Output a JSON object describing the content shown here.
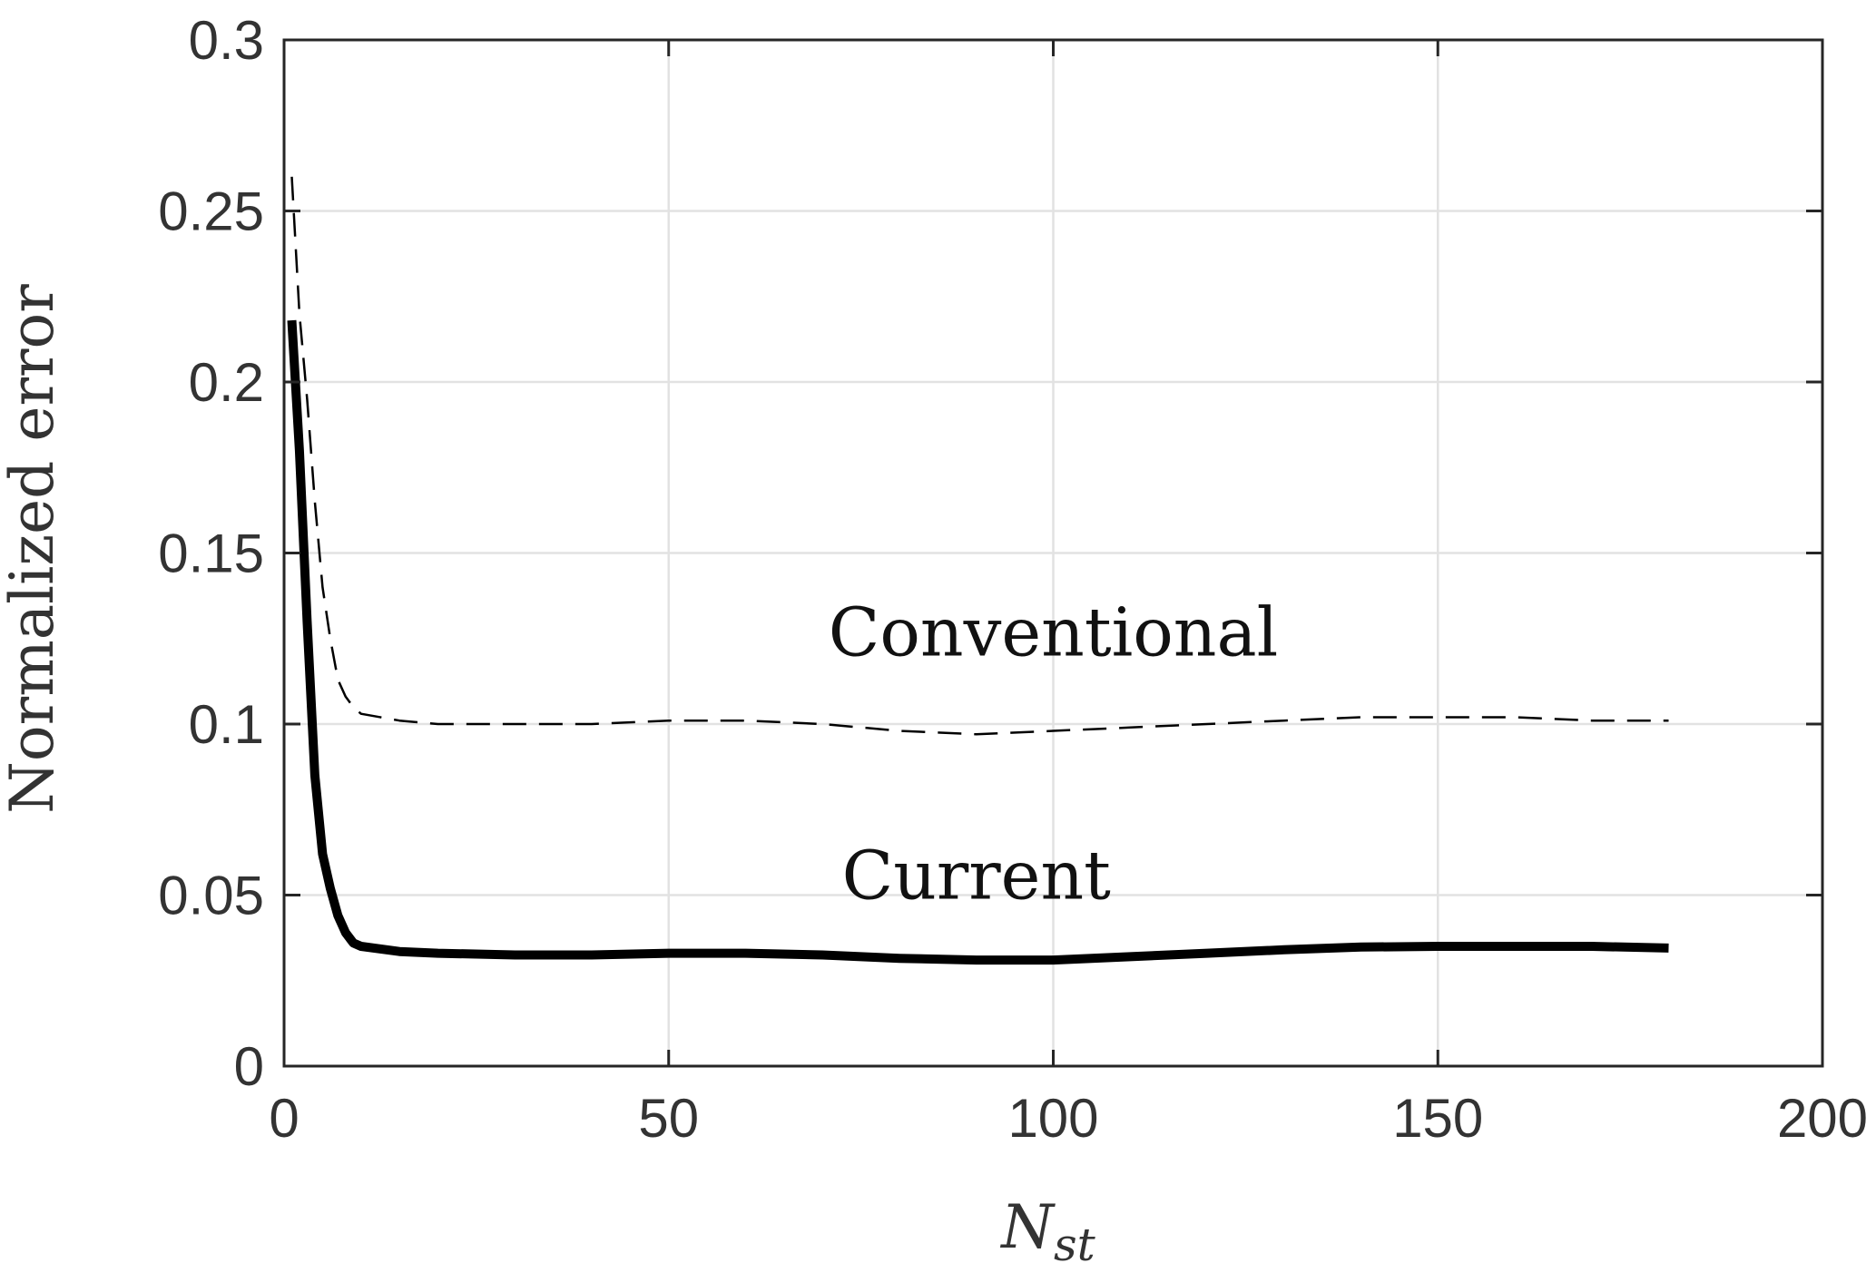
{
  "chart_data": {
    "type": "line",
    "title": "",
    "xlabel_main": "N",
    "xlabel_sub": "st",
    "ylabel": "Normalized error",
    "xlim": [
      0,
      200
    ],
    "ylim": [
      0,
      0.3
    ],
    "x_ticks": [
      "0",
      "50",
      "100",
      "150",
      "200"
    ],
    "y_ticks": [
      "0",
      "0.05",
      "0.1",
      "0.15",
      "0.2",
      "0.25",
      "0.3"
    ],
    "grid": true,
    "series": [
      {
        "name": "Conventional",
        "style": "dashed",
        "color": "#000000",
        "x": [
          1,
          2,
          3,
          4,
          5,
          6,
          7,
          8,
          9,
          10,
          15,
          20,
          30,
          40,
          50,
          60,
          70,
          80,
          90,
          100,
          110,
          120,
          130,
          140,
          150,
          160,
          170,
          180
        ],
        "y": [
          0.26,
          0.22,
          0.195,
          0.165,
          0.14,
          0.125,
          0.113,
          0.108,
          0.105,
          0.103,
          0.101,
          0.1,
          0.1,
          0.1,
          0.101,
          0.101,
          0.1,
          0.098,
          0.097,
          0.098,
          0.099,
          0.1,
          0.101,
          0.102,
          0.102,
          0.102,
          0.101,
          0.101
        ]
      },
      {
        "name": "Current",
        "style": "solid",
        "color": "#000000",
        "x": [
          1,
          2,
          3,
          4,
          5,
          6,
          7,
          8,
          9,
          10,
          15,
          20,
          30,
          40,
          50,
          60,
          70,
          80,
          90,
          100,
          110,
          120,
          130,
          140,
          150,
          160,
          170,
          180
        ],
        "y": [
          0.218,
          0.18,
          0.13,
          0.085,
          0.062,
          0.052,
          0.044,
          0.039,
          0.036,
          0.035,
          0.0335,
          0.033,
          0.0325,
          0.0325,
          0.033,
          0.033,
          0.0325,
          0.0315,
          0.031,
          0.031,
          0.032,
          0.033,
          0.034,
          0.0348,
          0.035,
          0.035,
          0.035,
          0.0345
        ]
      }
    ],
    "annotations": [
      {
        "text": "Conventional",
        "x": 100,
        "y": 0.12
      },
      {
        "text": "Current",
        "x": 90,
        "y": 0.049
      }
    ]
  }
}
